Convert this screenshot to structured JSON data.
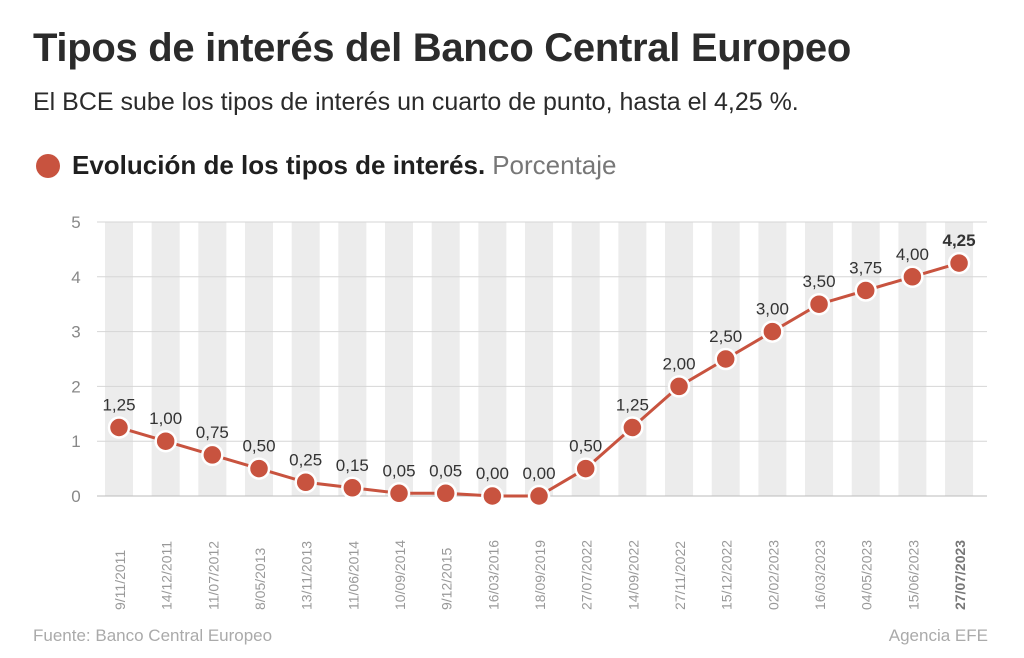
{
  "header": {
    "title": "Tipos de interés del Banco Central Europeo",
    "subtitle": "El BCE sube los tipos de interés un cuarto de punto, hasta el 4,25 %.",
    "legend_label": "Evolución de los tipos de interés.",
    "legend_unit": "Porcentaje"
  },
  "footer": {
    "source": "Fuente: Banco Central Europeo",
    "agency": "Agencia EFE"
  },
  "colors": {
    "series": "#c8533f",
    "band": "#ececec",
    "grid": "#d6d6d6"
  },
  "chart_data": {
    "type": "line",
    "title": "Evolución de los tipos de interés",
    "ylabel": "Porcentaje",
    "ylim": [
      0,
      5
    ],
    "yticks": [
      "0",
      "1",
      "2",
      "3",
      "4",
      "5"
    ],
    "categories": [
      "9/11/2011",
      "14/12/2011",
      "11/07/2012",
      "8/05/2013",
      "13/11/2013",
      "11/06/2014",
      "10/09/2014",
      "9/12/2015",
      "16/03/2016",
      "18/09/2019",
      "27/07/2022",
      "14/09/2022",
      "27/11/2022",
      "15/12/2022",
      "02/02/2023",
      "16/03/2023",
      "04/05/2023",
      "15/06/2023",
      "27/07/2023"
    ],
    "values": [
      1.25,
      1.0,
      0.75,
      0.5,
      0.25,
      0.15,
      0.05,
      0.05,
      0.0,
      0.0,
      0.5,
      1.25,
      2.0,
      2.5,
      3.0,
      3.5,
      3.75,
      4.0,
      4.25
    ],
    "labels": [
      "1,25",
      "1,00",
      "0,75",
      "0,50",
      "0,25",
      "0,15",
      "0,05",
      "0,05",
      "0,00",
      "0,00",
      "0,50",
      "1,25",
      "2,00",
      "2,50",
      "3,00",
      "3,50",
      "3,75",
      "4,00",
      "4,25"
    ],
    "grid": true
  }
}
